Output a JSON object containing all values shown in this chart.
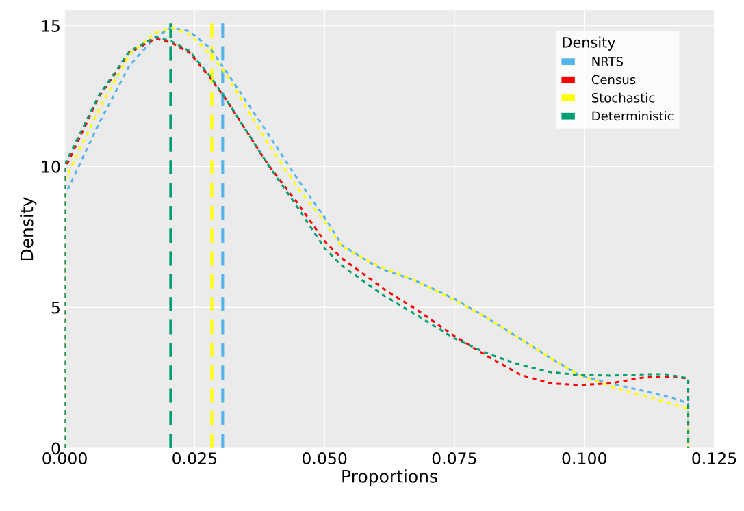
{
  "chart_data": {
    "type": "line",
    "xlabel": "Proportions",
    "ylabel": "Density",
    "legend_title": "Density",
    "x": [
      0,
      0,
      0.0065,
      0.0125,
      0.0175,
      0.0205,
      0.024,
      0.028,
      0.031,
      0.039,
      0.045,
      0.05,
      0.0534,
      0.06,
      0.062,
      0.0675,
      0.075,
      0.0815,
      0.0878,
      0.0935,
      0.099,
      0.105,
      0.111,
      0.1155,
      0.12,
      0.12
    ],
    "series": [
      {
        "name": "NRTS",
        "color": "#56b4e9",
        "values": [
          0,
          8.95,
          11.5,
          13.6,
          14.6,
          14.93,
          14.8,
          14.2,
          13.4,
          11.2,
          9.5,
          8.2,
          7.2,
          6.45,
          6.3,
          5.95,
          5.3,
          4.6,
          3.87,
          3.2,
          2.6,
          2.3,
          2.05,
          1.85,
          1.6,
          0
        ]
      },
      {
        "name": "Census",
        "color": "#ff0000",
        "values": [
          0,
          9.9,
          12.45,
          14.05,
          14.55,
          14.4,
          14.05,
          13.15,
          12.4,
          10.1,
          8.65,
          7.35,
          6.73,
          5.85,
          5.57,
          4.95,
          3.98,
          3.25,
          2.6,
          2.3,
          2.24,
          2.3,
          2.5,
          2.55,
          2.48,
          0
        ]
      },
      {
        "name": "Stochastic",
        "color": "#ffff00",
        "values": [
          0,
          9.5,
          12.0,
          14.0,
          14.75,
          14.93,
          14.7,
          14.0,
          13.3,
          10.85,
          9.2,
          8.05,
          7.15,
          6.5,
          6.35,
          5.95,
          5.25,
          4.6,
          3.87,
          3.2,
          2.6,
          2.2,
          1.87,
          1.65,
          1.39,
          0
        ]
      },
      {
        "name": "Deterministic",
        "color": "#009e73",
        "values": [
          0,
          10.07,
          12.5,
          14.1,
          14.6,
          14.45,
          14.1,
          13.2,
          12.4,
          10.1,
          8.5,
          7.1,
          6.47,
          5.6,
          5.35,
          4.75,
          3.9,
          3.35,
          2.95,
          2.7,
          2.6,
          2.58,
          2.62,
          2.63,
          2.48,
          0
        ]
      }
    ],
    "ref_lines": [
      {
        "axis": "x",
        "value": 0.0204,
        "color": "#009e73",
        "line_style": "dashed"
      },
      {
        "axis": "x",
        "value": 0.0283,
        "color": "#ffff00",
        "line_style": "dashed"
      },
      {
        "axis": "x",
        "value": 0.0304,
        "color": "#56b4e9",
        "line_style": "dashed"
      }
    ],
    "xlim": [
      0,
      0.125
    ],
    "ylim": [
      0,
      15.55
    ],
    "xticks": [
      {
        "value": 0,
        "label": "0.000"
      },
      {
        "value": 0.025,
        "label": "0.025"
      },
      {
        "value": 0.05,
        "label": "0.050"
      },
      {
        "value": 0.075,
        "label": "0.075"
      },
      {
        "value": 0.1,
        "label": "0.100"
      },
      {
        "value": 0.125,
        "label": "0.125"
      }
    ],
    "yticks": [
      0,
      5,
      10,
      15
    ],
    "grid": true,
    "legend": "top right",
    "line_style": "dotted",
    "marker": "none"
  }
}
